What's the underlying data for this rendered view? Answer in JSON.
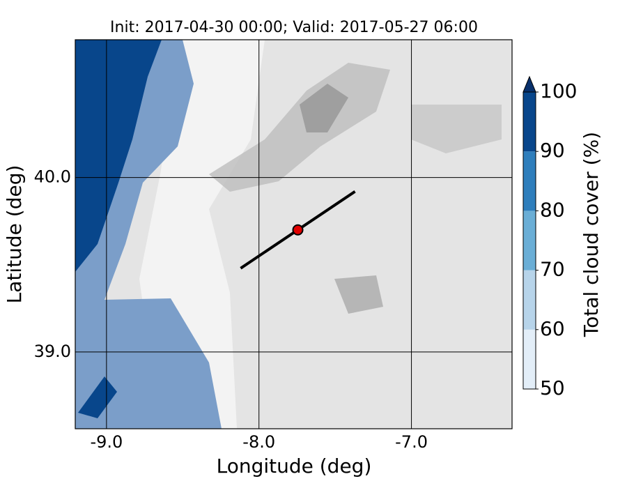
{
  "chart_data": {
    "type": "map",
    "title": "Init: 2017-04-30 00:00; Valid: 2017-05-27 06:00",
    "x_label": "Longitude (deg)",
    "y_label": "Latitude (deg)",
    "xlim": [
      -9.205,
      -6.34
    ],
    "ylim": [
      38.56,
      40.79
    ],
    "xticks": [
      {
        "value": -9,
        "label": "-9.0"
      },
      {
        "value": -8,
        "label": "-8.0"
      },
      {
        "value": -7,
        "label": "-7.0"
      }
    ],
    "yticks": [
      {
        "value": 39,
        "label": "39.0"
      },
      {
        "value": 40,
        "label": "40.0"
      }
    ],
    "grid": true,
    "cross_section": {
      "x": [
        -8.12,
        -7.37
      ],
      "y": [
        39.48,
        39.92
      ],
      "color": "#000000"
    },
    "point": {
      "x": -7.745,
      "y": 39.7,
      "color": "#e00000"
    },
    "colorbar": {
      "label": "Total cloud cover (%)",
      "lim": [
        50,
        100
      ],
      "ticks": [
        50,
        60,
        70,
        80,
        90,
        100
      ],
      "colors": [
        "#e3eef8",
        "#b7d4ea",
        "#6aaed6",
        "#2e7ebc",
        "#08468b"
      ],
      "extend_color": "#08306b"
    }
  }
}
